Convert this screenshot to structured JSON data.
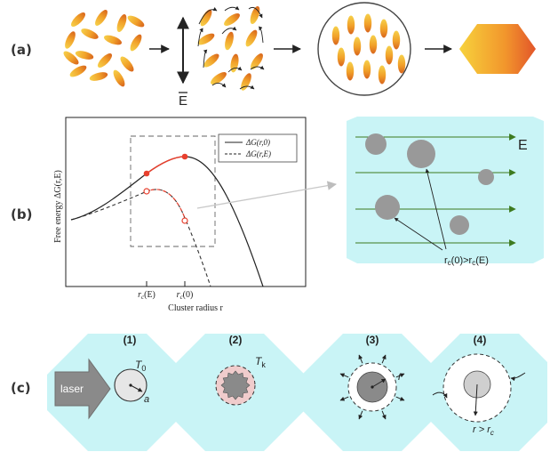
{
  "panel_labels": [
    "(a)",
    "(b)",
    "(c)"
  ],
  "colors": {
    "rod_light": "#f6d04a",
    "rod_dark": "#e07a1e",
    "cyan": "#c9f4f6",
    "red": "#e8402e",
    "green": "#3d7a1f",
    "grey": "#9c9c9c"
  },
  "panel_a": {
    "field_label": "E",
    "field_overline": true
  },
  "panel_b": {
    "graph": {
      "ylabel": "Free energy ΔG(r,E)",
      "xlabel": "Cluster radius r",
      "tick_rcE": "r",
      "tick_rcE_sub": "c",
      "tick_rcE_arg": "(E)",
      "tick_rc0": "r",
      "tick_rc0_sub": "c",
      "tick_rc0_arg": "(0)",
      "legend": [
        {
          "label": "ΔG(r,0)",
          "style": "solid"
        },
        {
          "label": "ΔG(r,E)",
          "style": "dashed"
        }
      ]
    },
    "inset": {
      "field_label": "E",
      "annotation_r": "r",
      "annotation_sub1": "c",
      "annotation_mid": "(0)>r",
      "annotation_sub2": "c",
      "annotation_end": "(E)"
    }
  },
  "panel_c": {
    "steps": [
      {
        "num": "(1)",
        "label": "T",
        "label_sub": "0",
        "extra": "a"
      },
      {
        "num": "(2)",
        "label": "T",
        "label_sub": "k"
      },
      {
        "num": "(3)",
        "label": "r"
      },
      {
        "num": "(4)",
        "cond_r": "r > r",
        "cond_sub": "c"
      }
    ],
    "laser_label": "laser"
  }
}
